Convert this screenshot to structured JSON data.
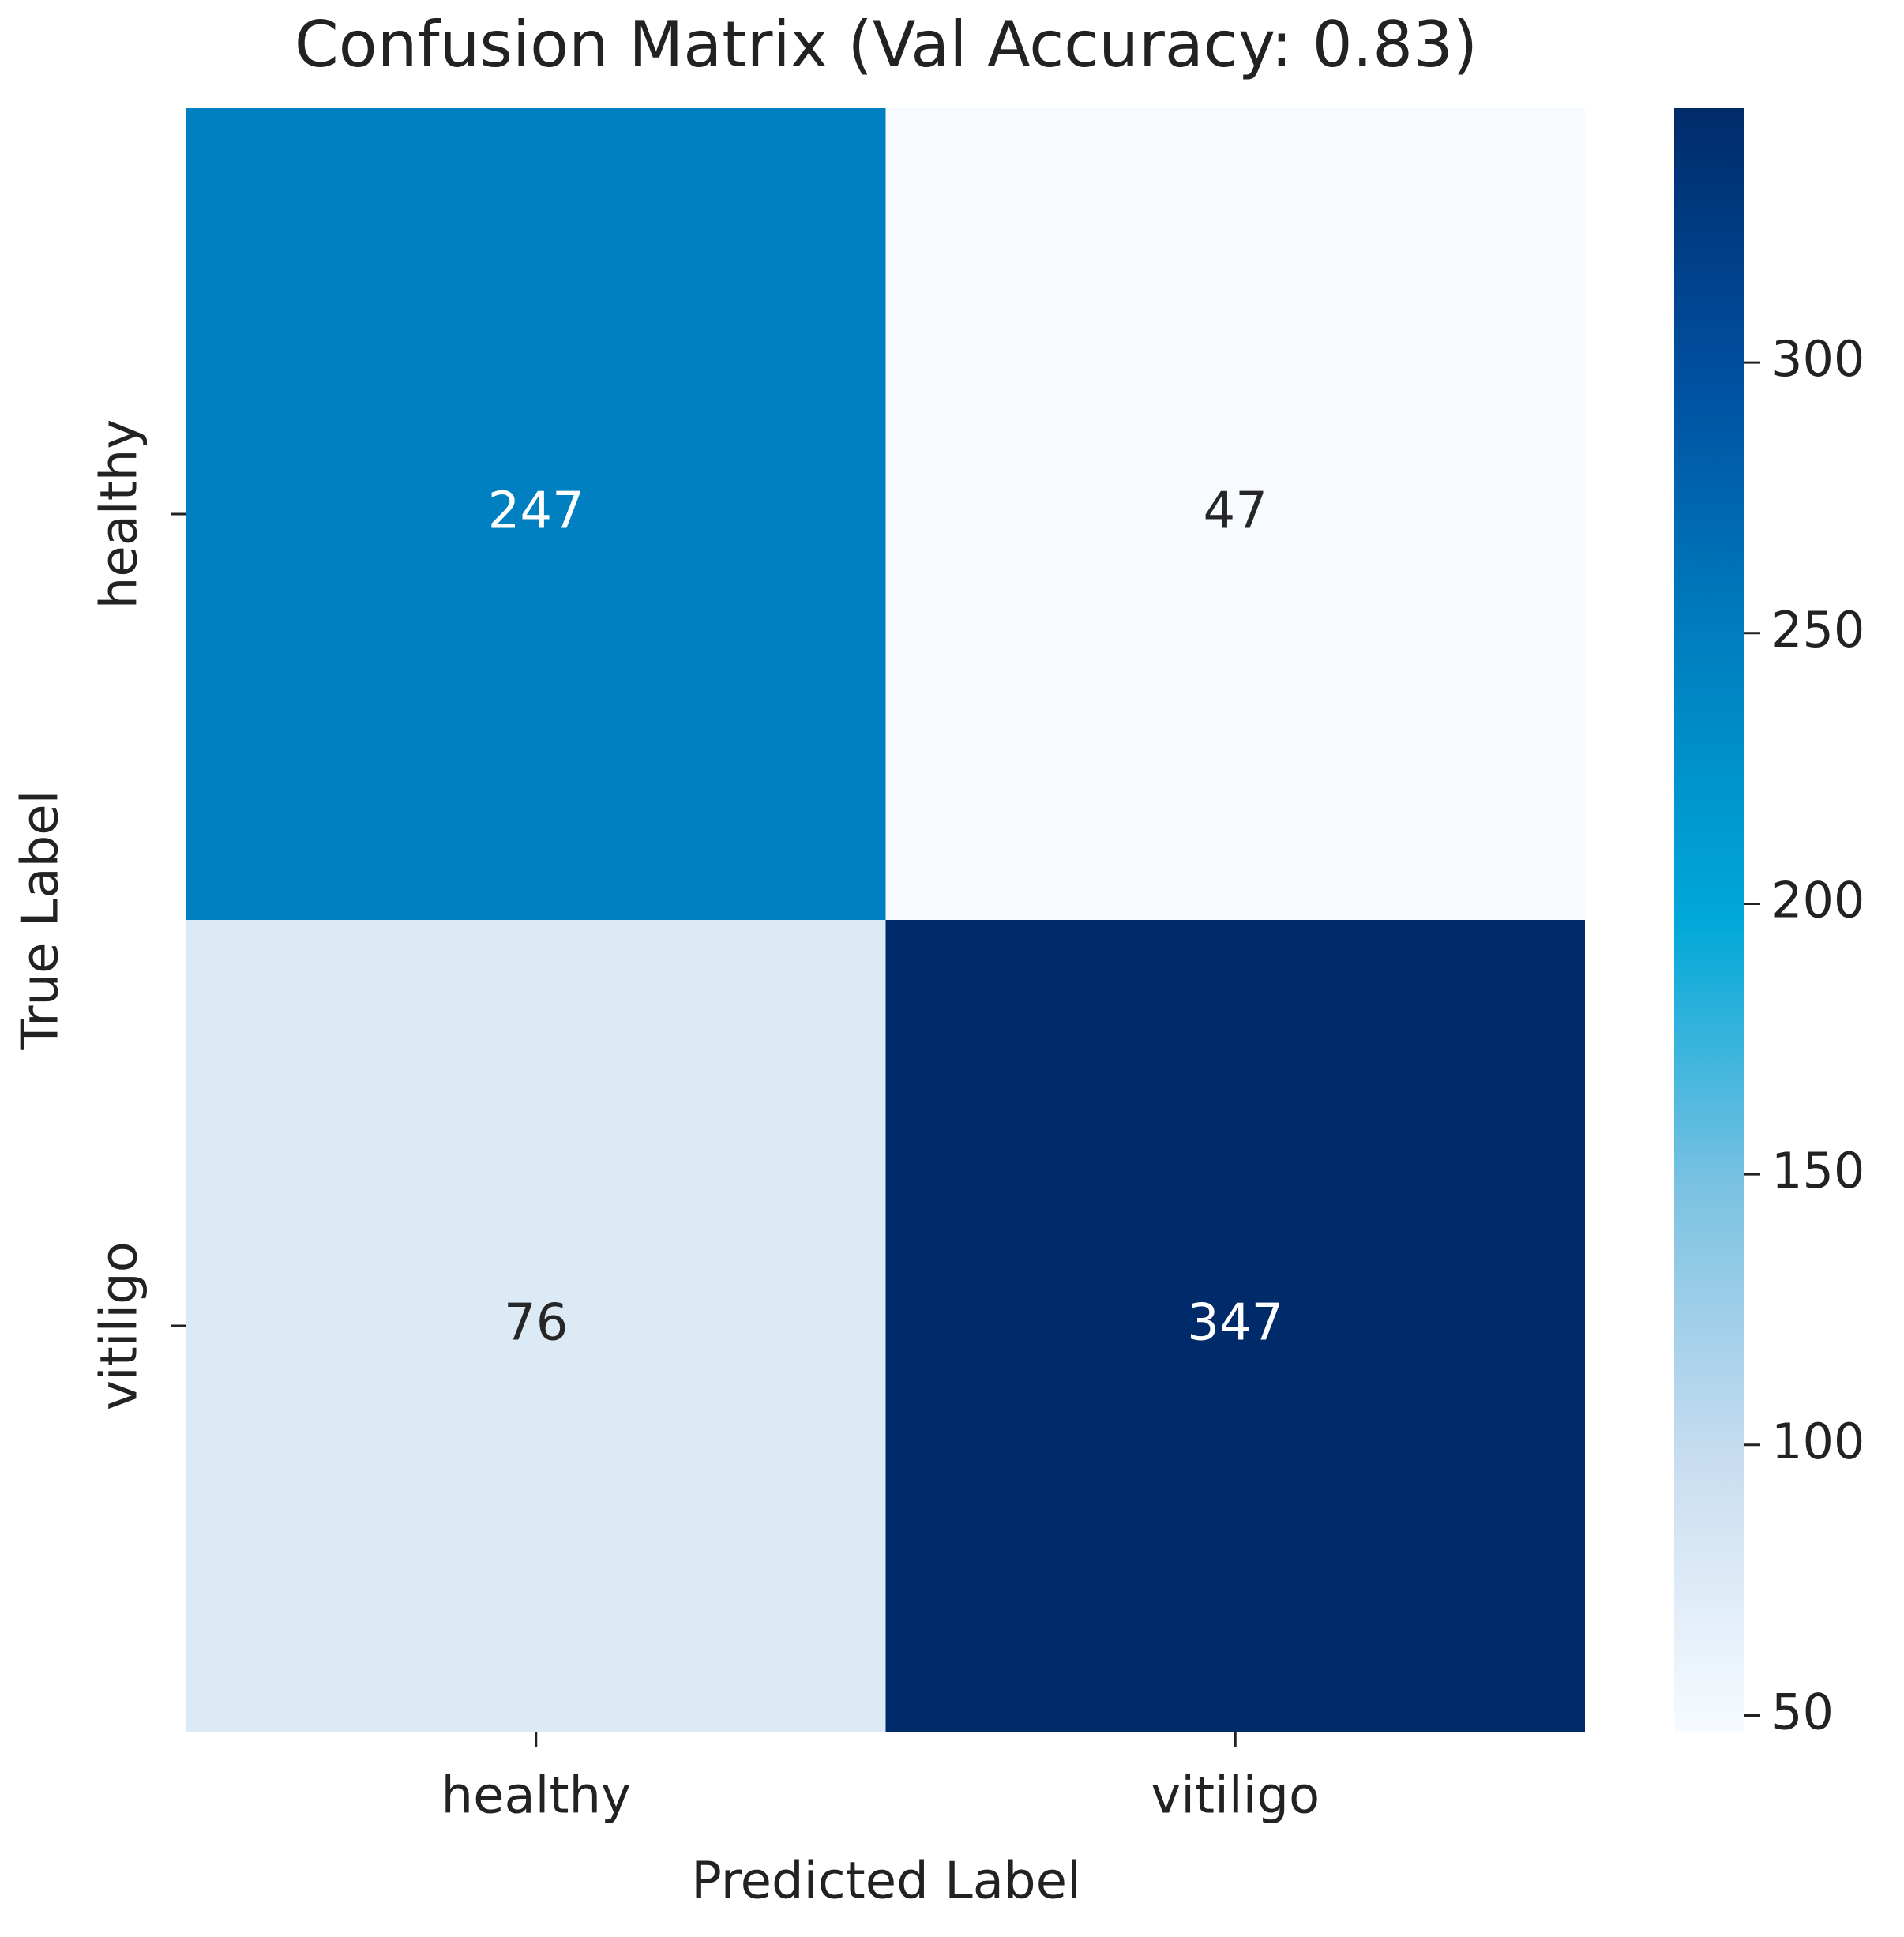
{
  "chart_data": {
    "type": "heatmap",
    "title": "Confusion Matrix (Val Accuracy: 0.83)",
    "x_label": "Predicted Label",
    "y_label": "True Label",
    "x_categories": [
      "healthy",
      "vitiligo"
    ],
    "y_categories": [
      "healthy",
      "vitiligo"
    ],
    "values": [
      [
        247,
        47
      ],
      [
        76,
        347
      ]
    ],
    "zlim": [
      47,
      347
    ],
    "zticks": [
      50,
      100,
      150,
      200,
      250,
      300
    ],
    "colormap": [
      "#f7fbff",
      "#c8ddf0",
      "#7cc2e2",
      "#00a8d8",
      "#0080c0",
      "#0050a0",
      "#002b6b"
    ]
  }
}
